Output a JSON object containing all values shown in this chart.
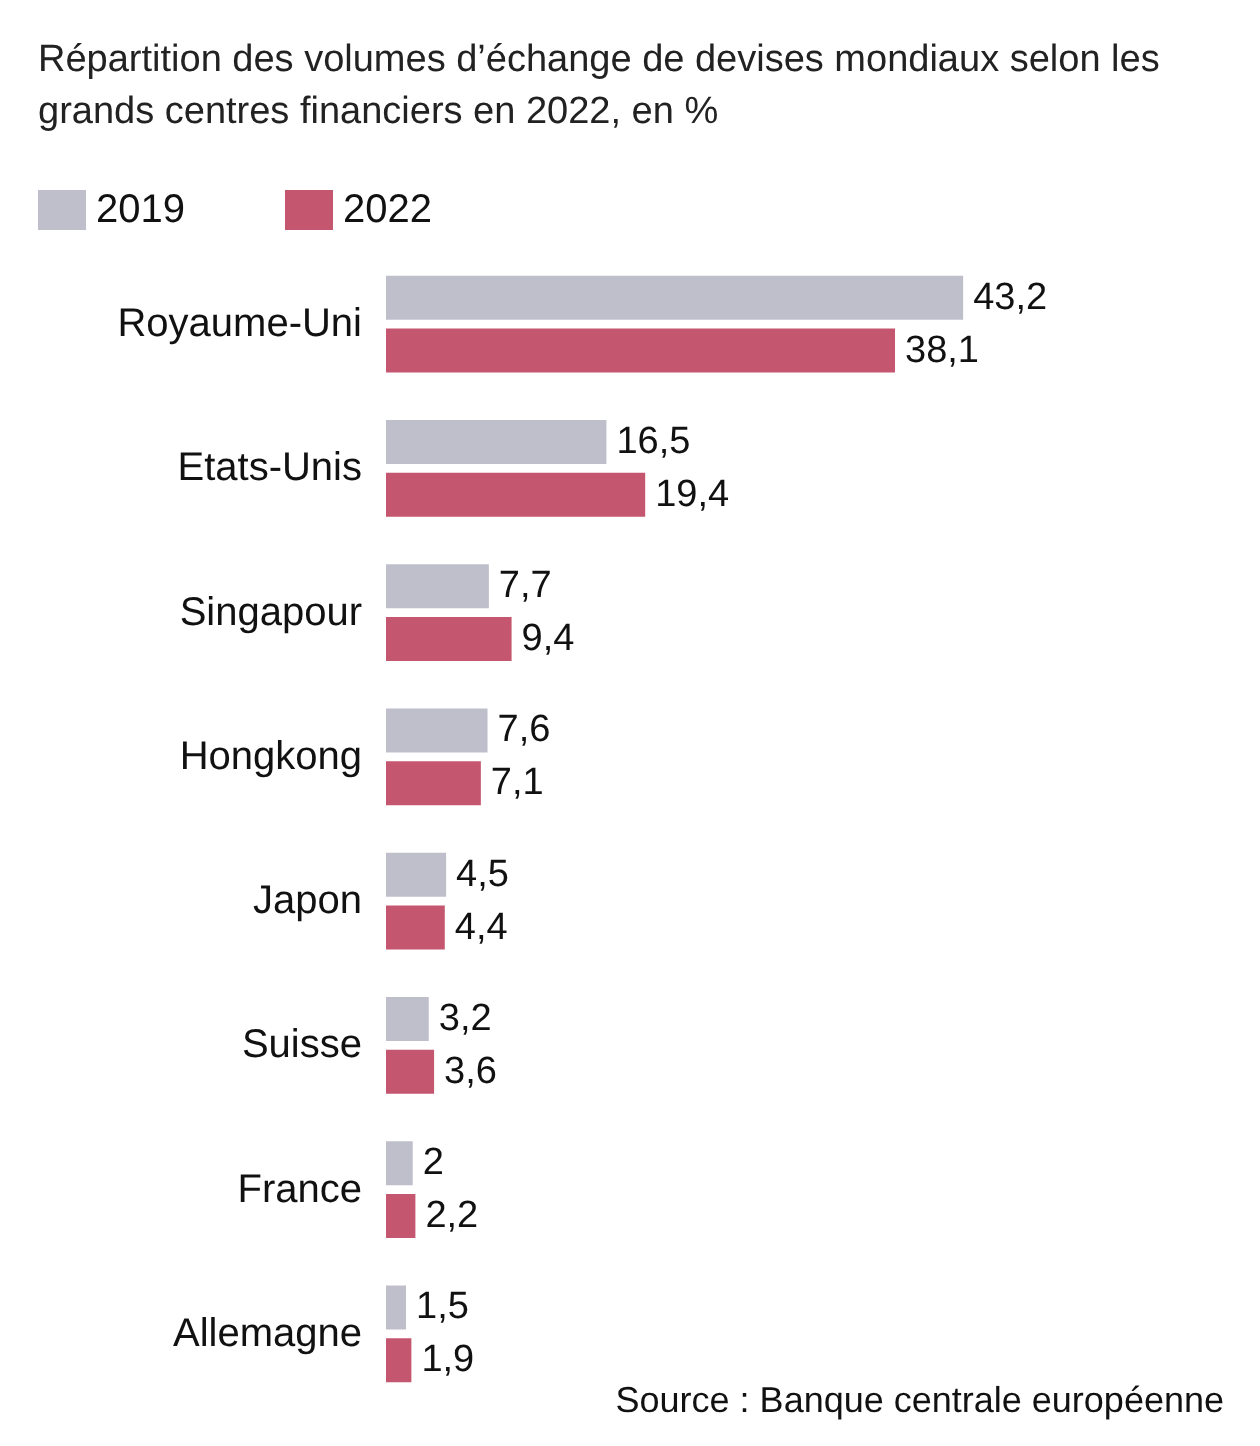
{
  "chart_data": {
    "type": "bar",
    "orientation": "horizontal",
    "title": "Répartition des volumes d’échange de devises mondiaux selon les grands centres financiers en 2022, en %",
    "categories": [
      "Royaume-Uni",
      "Etats-Unis",
      "Singapour",
      "Hongkong",
      "Japon",
      "Suisse",
      "France",
      "Allemagne"
    ],
    "series": [
      {
        "name": "2019",
        "color": "#bfbfcc",
        "values": [
          43.2,
          16.5,
          7.7,
          7.6,
          4.5,
          3.2,
          2,
          1.5
        ],
        "value_labels": [
          "43,2",
          "16,5",
          "7,7",
          "7,6",
          "4,5",
          "3,2",
          "2",
          "1,5"
        ]
      },
      {
        "name": "2022",
        "color": "#c4566f",
        "values": [
          38.1,
          19.4,
          9.4,
          7.1,
          4.4,
          3.6,
          2.2,
          1.9
        ],
        "value_labels": [
          "38,1",
          "19,4",
          "9,4",
          "7,1",
          "4,4",
          "3,6",
          "2,2",
          "1,9"
        ]
      }
    ],
    "legend": "top left",
    "annotations": [
      "Source : Banque centrale européenne"
    ]
  }
}
